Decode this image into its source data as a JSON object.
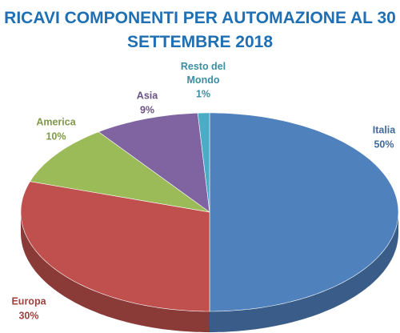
{
  "chart_data": {
    "type": "pie",
    "title": "RICAVI COMPONENTI PER AUTOMAZIONE AL 30 SETTEMBRE 2018",
    "categories": [
      "Italia",
      "Europa",
      "America",
      "Asia",
      "Resto del Mondo"
    ],
    "values": [
      50,
      30,
      10,
      9,
      1
    ],
    "value_labels": [
      "50%",
      "30%",
      "10%",
      "9%",
      "1%"
    ],
    "colors": [
      "#4f81bd",
      "#c0504d",
      "#9bbb59",
      "#8064a2",
      "#4bacc6"
    ]
  }
}
